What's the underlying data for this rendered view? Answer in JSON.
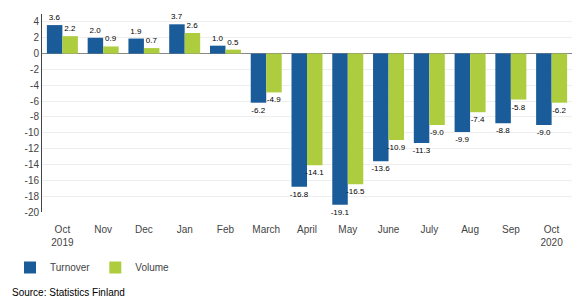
{
  "chart_data": {
    "type": "bar",
    "categories": [
      "Oct\n2019",
      "Nov",
      "Dec",
      "Jan",
      "Feb",
      "March",
      "April",
      "May",
      "June",
      "July",
      "Aug",
      "Sep",
      "Oct\n2020"
    ],
    "series": [
      {
        "name": "Turnover",
        "color": "#1A5C99",
        "values": [
          3.6,
          2.0,
          1.9,
          3.7,
          1.0,
          -6.2,
          -16.8,
          -19.1,
          -13.6,
          -11.3,
          -9.9,
          -8.8,
          -9.0
        ],
        "value_labels": [
          "3.6",
          "2.0",
          "1.9",
          "3.7",
          "1.0",
          "-6.2",
          "-16.8",
          "-19.1",
          "-13.6",
          "-11.3",
          "-9.9",
          "-8.8",
          "-9.0"
        ]
      },
      {
        "name": "Volume",
        "color": "#ADCD3E",
        "values": [
          2.2,
          0.9,
          0.7,
          2.6,
          0.5,
          -4.9,
          -14.1,
          -16.5,
          -10.9,
          -9.0,
          -7.4,
          -5.8,
          -6.2
        ],
        "value_labels": [
          "2.2",
          "0.9",
          "0.7",
          "2.6",
          "0.5",
          "-4.9",
          "-14.1",
          "-16.5",
          "-10.9",
          "-9.0",
          "-7.4",
          "-5.8",
          "-6.2"
        ]
      }
    ],
    "ylim": [
      -20,
      5
    ],
    "yticks": [
      -20,
      -18,
      -16,
      -14,
      -12,
      -10,
      -8,
      -6,
      -4,
      -2,
      0,
      2,
      4
    ],
    "grid": true,
    "legend": "bottom",
    "data_labels": true,
    "annotations": [
      "Source: Statistics Finland"
    ]
  }
}
